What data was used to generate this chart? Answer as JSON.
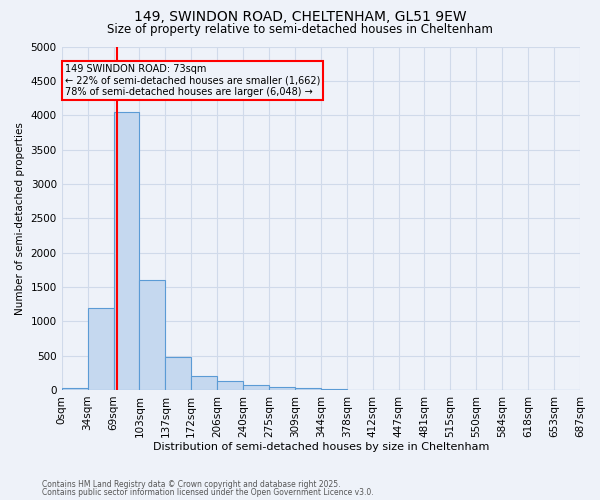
{
  "title1": "149, SWINDON ROAD, CHELTENHAM, GL51 9EW",
  "title2": "Size of property relative to semi-detached houses in Cheltenham",
  "xlabel": "Distribution of semi-detached houses by size in Cheltenham",
  "ylabel": "Number of semi-detached properties",
  "bin_labels": [
    "0sqm",
    "34sqm",
    "69sqm",
    "103sqm",
    "137sqm",
    "172sqm",
    "206sqm",
    "240sqm",
    "275sqm",
    "309sqm",
    "344sqm",
    "378sqm",
    "412sqm",
    "447sqm",
    "481sqm",
    "515sqm",
    "550sqm",
    "584sqm",
    "618sqm",
    "653sqm",
    "687sqm"
  ],
  "bar_heights": [
    30,
    1200,
    4050,
    1600,
    480,
    200,
    130,
    70,
    50,
    30,
    10,
    5,
    3,
    2,
    1,
    1,
    1,
    0,
    0,
    0
  ],
  "bar_color": "#c5d8ef",
  "bar_edge_color": "#5b9bd5",
  "property_line_x": 73,
  "property_line_color": "red",
  "annotation_title": "149 SWINDON ROAD: 73sqm",
  "annotation_line1": "← 22% of semi-detached houses are smaller (1,662)",
  "annotation_line2": "78% of semi-detached houses are larger (6,048) →",
  "annotation_box_color": "red",
  "ylim": [
    0,
    5000
  ],
  "yticks": [
    0,
    500,
    1000,
    1500,
    2000,
    2500,
    3000,
    3500,
    4000,
    4500,
    5000
  ],
  "footnote1": "Contains HM Land Registry data © Crown copyright and database right 2025.",
  "footnote2": "Contains public sector information licensed under the Open Government Licence v3.0.",
  "background_color": "#eef2f9",
  "grid_color": "#d0daea",
  "bin_width": 34,
  "n_bins": 20
}
